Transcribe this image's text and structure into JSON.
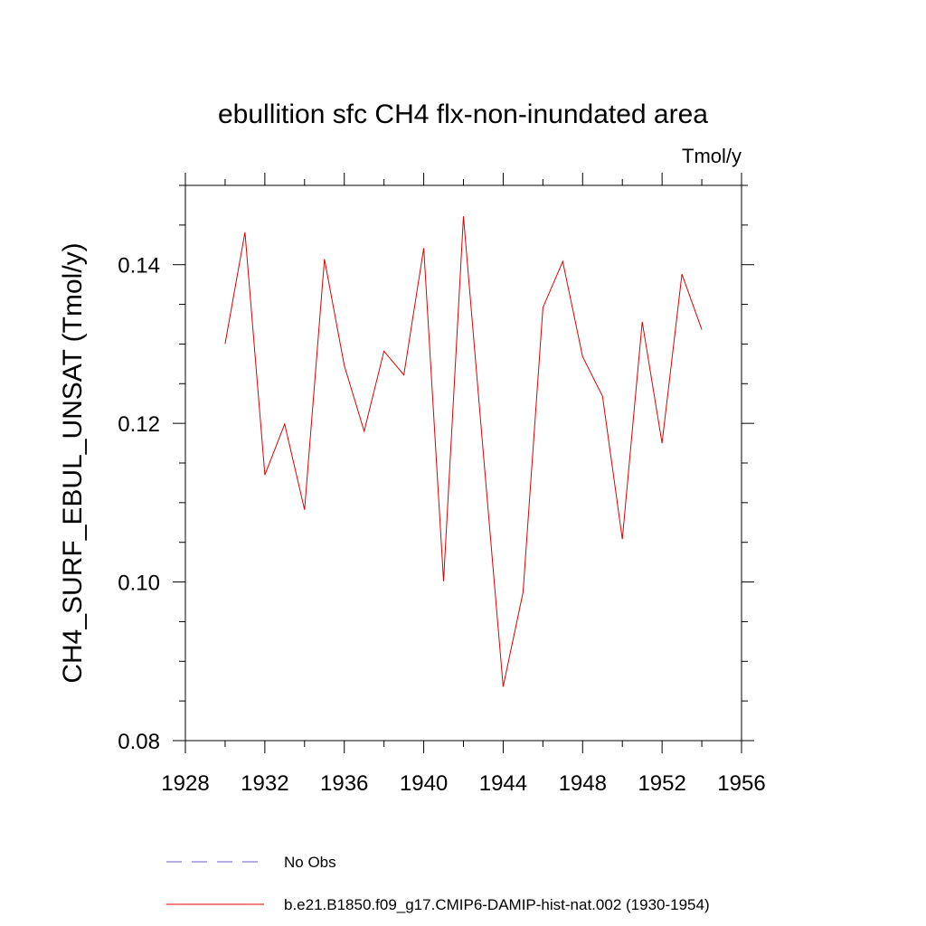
{
  "chart_data": {
    "type": "line",
    "title": "ebullition sfc CH4 flx-non-inundated area",
    "units_label": "Tmol/y",
    "ylabel": "CH4_SURF_EBUL_UNSAT  (Tmol/y)",
    "xlabel": "",
    "xlim": [
      1928,
      1956
    ],
    "ylim": [
      0.08,
      0.15
    ],
    "x_ticks": [
      1928,
      1932,
      1936,
      1940,
      1944,
      1948,
      1952,
      1956
    ],
    "x_tick_labels": [
      "1928",
      "1932",
      "1936",
      "1940",
      "1944",
      "1948",
      "1952",
      "1956"
    ],
    "x_minor_ticks": [
      1930,
      1934,
      1938,
      1942,
      1946,
      1950,
      1954
    ],
    "y_ticks": [
      0.08,
      0.1,
      0.12,
      0.14
    ],
    "y_tick_labels": [
      "0.08",
      "0.10",
      "0.12",
      "0.14"
    ],
    "y_minor_ticks": [
      0.085,
      0.09,
      0.095,
      0.105,
      0.11,
      0.115,
      0.125,
      0.13,
      0.135,
      0.145,
      0.15
    ],
    "grid": false,
    "legend_placement": "bottom",
    "series": [
      {
        "name": "b.e21.B1850.f09_g17.CMIP6-DAMIP-hist-nat.002 (1930-1954)",
        "color": "#e00000",
        "style": "solid",
        "x": [
          1930,
          1931,
          1932,
          1933,
          1934,
          1935,
          1936,
          1937,
          1938,
          1939,
          1940,
          1941,
          1942,
          1943,
          1944,
          1945,
          1946,
          1947,
          1948,
          1949,
          1950,
          1951,
          1952,
          1953,
          1954
        ],
        "y": [
          0.13,
          0.1441,
          0.1135,
          0.1199,
          0.1091,
          0.1407,
          0.1273,
          0.119,
          0.1291,
          0.1261,
          0.1421,
          0.1001,
          0.1461,
          0.1162,
          0.0868,
          0.0987,
          0.1346,
          0.1404,
          0.1284,
          0.1234,
          0.1054,
          0.1328,
          0.1175,
          0.1388,
          0.1318
        ]
      }
    ],
    "legend": [
      {
        "label": "No Obs",
        "color": "#6a5acd",
        "style": "dashed"
      },
      {
        "label": "b.e21.B1850.f09_g17.CMIP6-DAMIP-hist-nat.002 (1930-1954)",
        "color": "#e00000",
        "style": "solid"
      }
    ]
  }
}
